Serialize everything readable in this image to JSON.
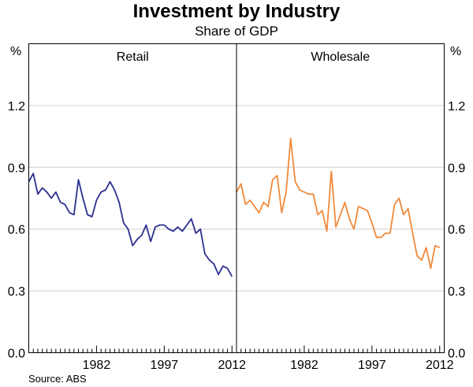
{
  "chart_data": {
    "type": "line",
    "title": "Investment by Industry",
    "subtitle": "Share of GDP",
    "source": "Source: ABS",
    "y_unit_left": "%",
    "y_unit_right": "%",
    "ylim": [
      0,
      1.5
    ],
    "yticks": [
      "0.0",
      "0.3",
      "0.6",
      "0.9",
      "1.2"
    ],
    "yticks_values": [
      0.0,
      0.3,
      0.6,
      0.9,
      1.2
    ],
    "x_range": [
      1967,
      2013
    ],
    "x_ticks": [
      1982,
      1997,
      2012
    ],
    "x_tick_labels": [
      "1982",
      "1997",
      "2012"
    ],
    "panels": [
      {
        "label": "Retail",
        "color": "#2b2f8f",
        "series": {
          "name": "Retail",
          "x": [
            1967,
            1968,
            1969,
            1970,
            1971,
            1972,
            1973,
            1974,
            1975,
            1976,
            1977,
            1978,
            1979,
            1980,
            1981,
            1982,
            1983,
            1984,
            1985,
            1986,
            1987,
            1988,
            1989,
            1990,
            1991,
            1992,
            1993,
            1994,
            1995,
            1996,
            1997,
            1998,
            1999,
            2000,
            2001,
            2002,
            2003,
            2004,
            2005,
            2006,
            2007,
            2008,
            2009,
            2010,
            2011,
            2012
          ],
          "y": [
            0.83,
            0.87,
            0.77,
            0.8,
            0.78,
            0.75,
            0.78,
            0.73,
            0.72,
            0.68,
            0.67,
            0.84,
            0.75,
            0.67,
            0.66,
            0.74,
            0.78,
            0.79,
            0.83,
            0.79,
            0.73,
            0.63,
            0.6,
            0.52,
            0.55,
            0.57,
            0.62,
            0.54,
            0.61,
            0.62,
            0.62,
            0.6,
            0.59,
            0.61,
            0.59,
            0.62,
            0.65,
            0.58,
            0.6,
            0.48,
            0.45,
            0.43,
            0.38,
            0.42,
            0.41,
            0.37
          ]
        }
      },
      {
        "label": "Wholesale",
        "color": "#f08a3c",
        "series": {
          "name": "Wholesale",
          "x": [
            1967,
            1968,
            1969,
            1970,
            1971,
            1972,
            1973,
            1974,
            1975,
            1976,
            1977,
            1978,
            1979,
            1980,
            1981,
            1982,
            1983,
            1984,
            1985,
            1986,
            1987,
            1988,
            1989,
            1990,
            1991,
            1992,
            1993,
            1994,
            1995,
            1996,
            1997,
            1998,
            1999,
            2000,
            2001,
            2002,
            2003,
            2004,
            2005,
            2006,
            2007,
            2008,
            2009,
            2010,
            2011,
            2012
          ],
          "y": [
            0.78,
            0.82,
            0.72,
            0.74,
            0.71,
            0.68,
            0.73,
            0.71,
            0.84,
            0.86,
            0.68,
            0.78,
            1.04,
            0.83,
            0.79,
            0.78,
            0.77,
            0.77,
            0.67,
            0.69,
            0.59,
            0.88,
            0.61,
            0.67,
            0.73,
            0.65,
            0.6,
            0.71,
            0.7,
            0.69,
            0.63,
            0.56,
            0.56,
            0.58,
            0.58,
            0.72,
            0.75,
            0.67,
            0.7,
            0.58,
            0.47,
            0.45,
            0.51,
            0.41,
            0.52,
            0.51
          ]
        }
      }
    ]
  }
}
